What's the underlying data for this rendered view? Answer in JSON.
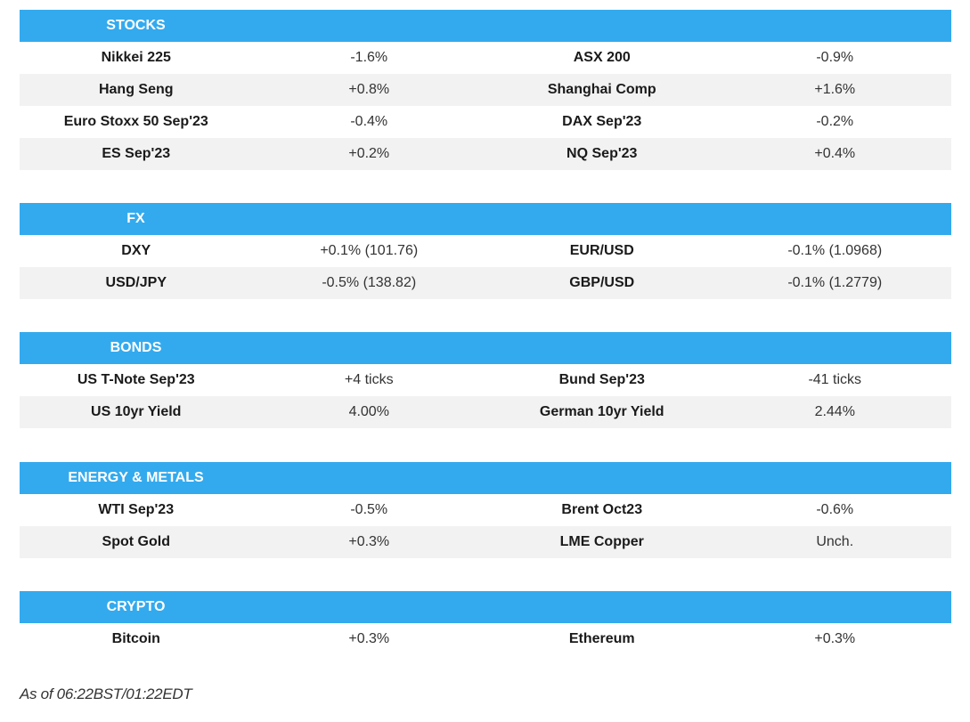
{
  "sections": {
    "stocks": {
      "title": "STOCKS",
      "rows": [
        [
          "Nikkei 225",
          "-1.6%",
          "ASX 200",
          "-0.9%"
        ],
        [
          "Hang Seng",
          "+0.8%",
          "Shanghai Comp",
          "+1.6%"
        ],
        [
          "Euro Stoxx 50 Sep'23",
          "-0.4%",
          "DAX Sep'23",
          "-0.2%"
        ],
        [
          "ES Sep'23",
          "+0.2%",
          "NQ Sep'23",
          "+0.4%"
        ]
      ]
    },
    "fx": {
      "title": "FX",
      "rows": [
        [
          "DXY",
          "+0.1% (101.76)",
          "EUR/USD",
          "-0.1% (1.0968)"
        ],
        [
          "USD/JPY",
          "-0.5% (138.82)",
          "GBP/USD",
          "-0.1% (1.2779)"
        ]
      ]
    },
    "bonds": {
      "title": "BONDS",
      "rows": [
        [
          "US T-Note Sep'23",
          "+4 ticks",
          "Bund Sep'23",
          "-41 ticks"
        ],
        [
          "US 10yr Yield",
          "4.00%",
          "German 10yr Yield",
          "2.44%"
        ]
      ]
    },
    "energy": {
      "title": "ENERGY & METALS",
      "rows": [
        [
          "WTI Sep'23",
          "-0.5%",
          "Brent Oct23",
          "-0.6%"
        ],
        [
          "Spot Gold",
          "+0.3%",
          "LME Copper",
          "Unch."
        ]
      ]
    },
    "crypto": {
      "title": "CRYPTO",
      "rows": [
        [
          "Bitcoin",
          "+0.3%",
          "Ethereum",
          "+0.3%"
        ]
      ]
    }
  },
  "footer": "As of 06:22BST/01:22EDT",
  "colors": {
    "header_bg": "#33aaee",
    "header_text": "#ffffff",
    "alt_row_bg": "#f2f2f2"
  }
}
